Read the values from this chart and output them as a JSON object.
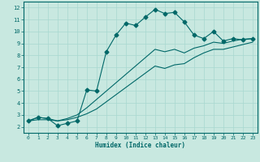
{
  "xlabel": "Humidex (Indice chaleur)",
  "bg_color": "#c8e8e0",
  "grid_color": "#a8d8d0",
  "line_color": "#006868",
  "axis_bg": "#8fbfb8",
  "xlim": [
    -0.5,
    23.5
  ],
  "ylim": [
    1.5,
    12.5
  ],
  "xticks": [
    0,
    1,
    2,
    3,
    4,
    5,
    6,
    7,
    8,
    9,
    10,
    11,
    12,
    13,
    14,
    15,
    16,
    17,
    18,
    19,
    20,
    21,
    22,
    23
  ],
  "yticks": [
    2,
    3,
    4,
    5,
    6,
    7,
    8,
    9,
    10,
    11,
    12
  ],
  "series1_x": [
    0,
    1,
    2,
    3,
    4,
    5,
    6,
    7,
    8,
    9,
    10,
    11,
    12,
    13,
    14,
    15,
    16,
    17,
    18,
    19,
    20,
    21,
    22,
    23
  ],
  "series1_y": [
    2.5,
    2.8,
    2.7,
    2.1,
    2.3,
    2.5,
    5.1,
    5.0,
    8.3,
    9.7,
    10.7,
    10.5,
    11.2,
    11.85,
    11.5,
    11.6,
    10.8,
    9.7,
    9.4,
    10.0,
    9.2,
    9.4,
    9.3,
    9.4
  ],
  "series2_x": [
    0,
    1,
    2,
    3,
    4,
    5,
    6,
    7,
    8,
    9,
    10,
    11,
    12,
    13,
    14,
    15,
    16,
    17,
    18,
    19,
    20,
    21,
    22,
    23
  ],
  "series2_y": [
    2.5,
    2.8,
    2.7,
    2.5,
    2.7,
    3.0,
    3.6,
    4.3,
    5.0,
    5.7,
    6.4,
    7.1,
    7.8,
    8.5,
    8.3,
    8.5,
    8.2,
    8.6,
    8.8,
    9.1,
    9.0,
    9.2,
    9.35,
    9.4
  ],
  "series3_x": [
    0,
    1,
    2,
    3,
    4,
    5,
    6,
    7,
    8,
    9,
    10,
    11,
    12,
    13,
    14,
    15,
    16,
    17,
    18,
    19,
    20,
    21,
    22,
    23
  ],
  "series3_y": [
    2.5,
    2.6,
    2.6,
    2.5,
    2.6,
    2.8,
    3.1,
    3.5,
    4.1,
    4.7,
    5.3,
    5.9,
    6.5,
    7.1,
    6.9,
    7.2,
    7.3,
    7.8,
    8.2,
    8.5,
    8.5,
    8.7,
    8.9,
    9.1
  ]
}
